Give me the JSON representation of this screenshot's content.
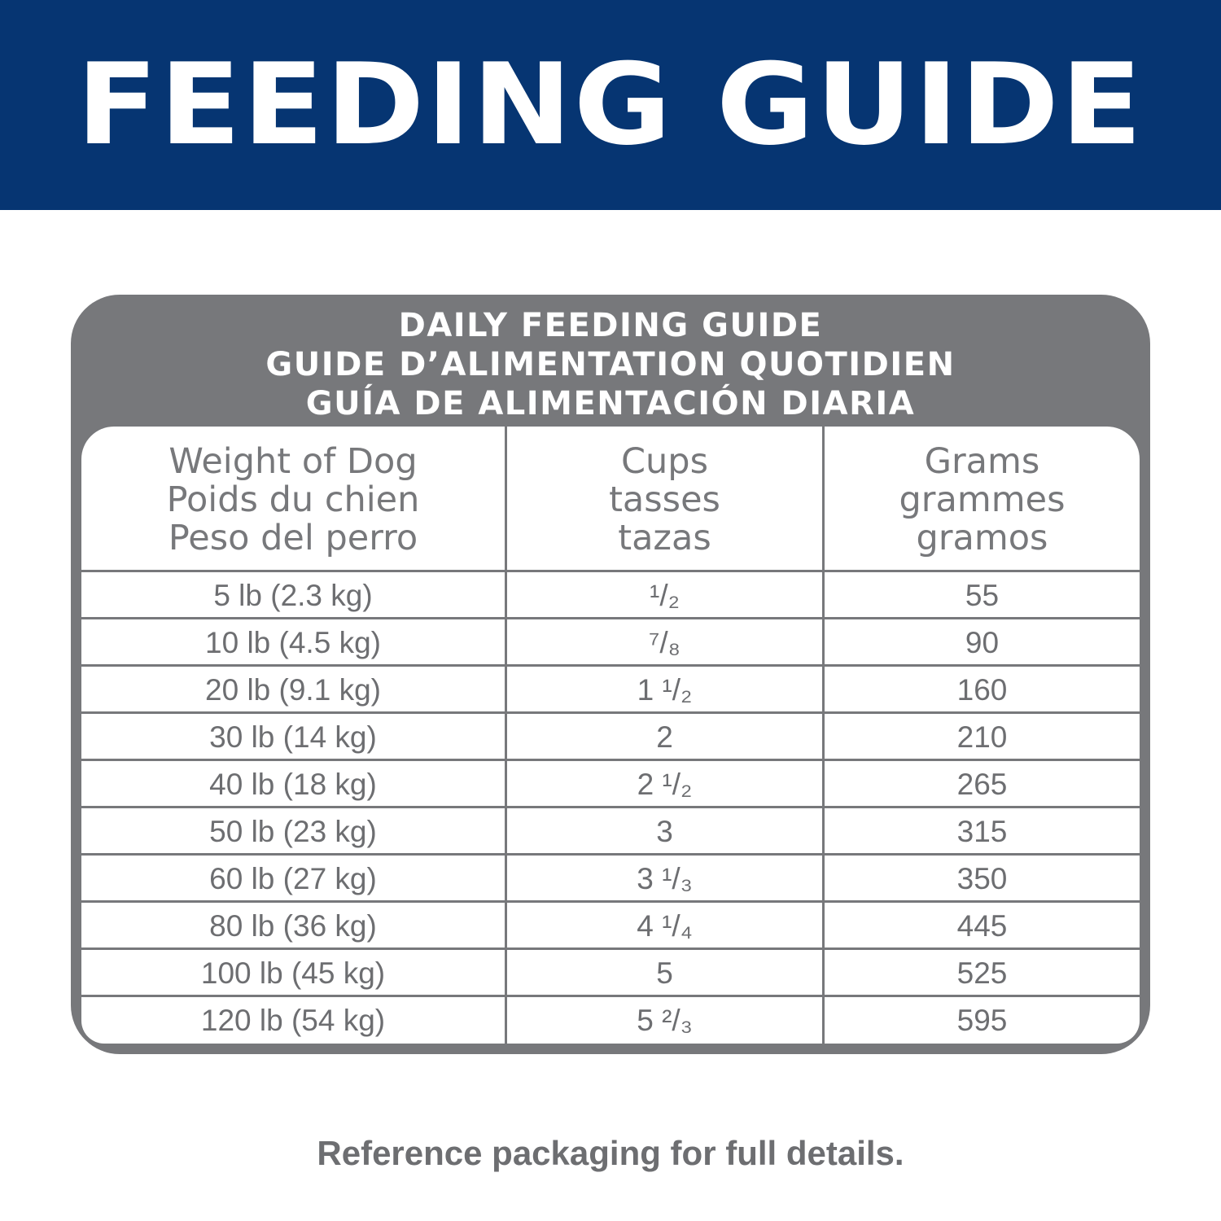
{
  "banner": {
    "title": "FEEDING GUIDE"
  },
  "panel": {
    "title_lines": [
      "DAILY FEEDING GUIDE",
      "GUIDE D’ALIMENTATION QUOTIDIEN",
      "GUÍA DE ALIMENTACIÓN DIARIA"
    ]
  },
  "table": {
    "headers": [
      [
        "Weight of Dog",
        "Poids du chien",
        "Peso del perro"
      ],
      [
        "Cups",
        "tasses",
        "tazas"
      ],
      [
        "Grams",
        "grammes",
        "gramos"
      ]
    ],
    "rows": [
      [
        "5 lb (2.3 kg)",
        "¹/₂",
        "55"
      ],
      [
        "10 lb (4.5 kg)",
        "⁷/₈",
        "90"
      ],
      [
        "20 lb (9.1 kg)",
        "1 ¹/₂",
        "160"
      ],
      [
        "30 lb (14 kg)",
        "2",
        "210"
      ],
      [
        "40 lb (18 kg)",
        "2 ¹/₂",
        "265"
      ],
      [
        "50 lb (23 kg)",
        "3",
        "315"
      ],
      [
        "60 lb (27 kg)",
        "3 ¹/₃",
        "350"
      ],
      [
        "80 lb (36 kg)",
        "4 ¹/₄",
        "445"
      ],
      [
        "100 lb (45 kg)",
        "5",
        "525"
      ],
      [
        "120 lb (54 kg)",
        "5 ²/₃",
        "595"
      ]
    ]
  },
  "footer": {
    "note": "Reference packaging for full details."
  },
  "colors": {
    "banner_bg": "#063572",
    "panel_gray": "#77787b",
    "text_gray": "#6d6e71"
  }
}
